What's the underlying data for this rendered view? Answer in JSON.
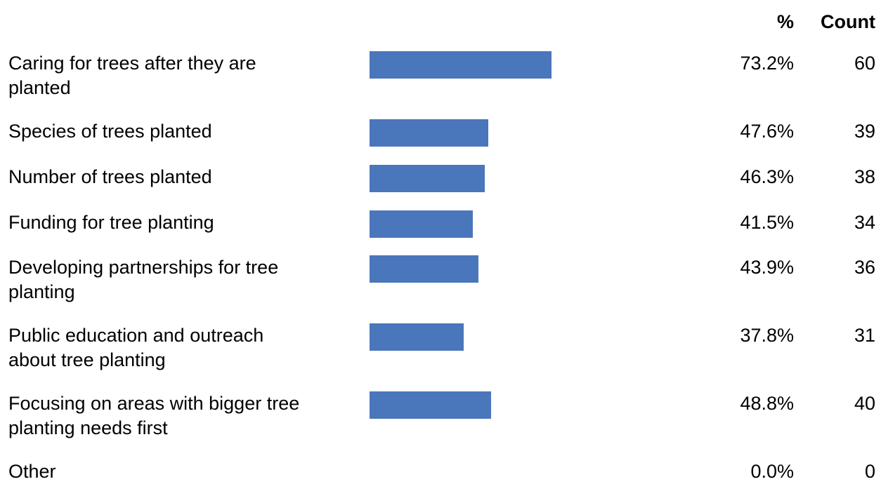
{
  "chart_data": {
    "type": "bar",
    "orientation": "horizontal",
    "columns": {
      "pct": "%",
      "count": "Count"
    },
    "bar_color": "#4a76bb",
    "xlim": [
      0,
      100
    ],
    "rows": [
      {
        "label": "Caring for trees after they are planted",
        "label_lines": [
          "Caring for trees after they are",
          "planted"
        ],
        "pct_value": 73.2,
        "pct": "73.2%",
        "count": "60"
      },
      {
        "label": "Species of trees planted",
        "label_lines": [
          "Species of trees planted"
        ],
        "pct_value": 47.6,
        "pct": "47.6%",
        "count": "39"
      },
      {
        "label": "Number of trees planted",
        "label_lines": [
          "Number of trees planted"
        ],
        "pct_value": 46.3,
        "pct": "46.3%",
        "count": "38"
      },
      {
        "label": "Funding for tree planting",
        "label_lines": [
          "Funding for tree planting"
        ],
        "pct_value": 41.5,
        "pct": "41.5%",
        "count": "34"
      },
      {
        "label": "Developing partnerships for tree planting",
        "label_lines": [
          "Developing partnerships for tree",
          "planting"
        ],
        "pct_value": 43.9,
        "pct": "43.9%",
        "count": "36"
      },
      {
        "label": "Public education and outreach about tree planting",
        "label_lines": [
          "Public education and outreach",
          "about tree planting"
        ],
        "pct_value": 37.8,
        "pct": "37.8%",
        "count": "31"
      },
      {
        "label": "Focusing on areas with bigger tree planting needs first",
        "label_lines": [
          "Focusing on areas with bigger tree",
          "planting needs first"
        ],
        "pct_value": 48.8,
        "pct": "48.8%",
        "count": "40"
      },
      {
        "label": "Other",
        "label_lines": [
          "Other"
        ],
        "pct_value": 0.0,
        "pct": "0.0%",
        "count": "0"
      }
    ]
  }
}
